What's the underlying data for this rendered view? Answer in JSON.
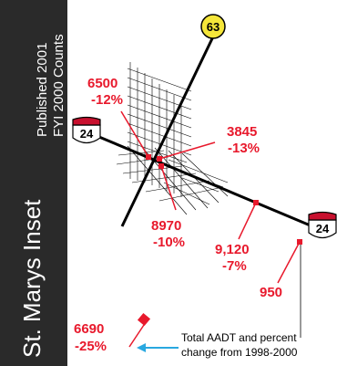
{
  "title": "St. Marys Inset",
  "subtitle_1": "Published 2001",
  "subtitle_2": "FYI 2000 Counts",
  "routes": {
    "state": "63",
    "interstate_west": "24",
    "interstate_east": "24"
  },
  "counts": [
    {
      "value": "6500",
      "change": "-12%"
    },
    {
      "value": "3845",
      "change": "-13%"
    },
    {
      "value": "8970",
      "change": "-10%"
    },
    {
      "value": "9,120",
      "change": "-7%"
    },
    {
      "value": "950",
      "change": ""
    },
    {
      "value": "6690",
      "change": "-25%"
    }
  ],
  "legend": {
    "line_1": "Total AADT and percent",
    "line_2": "change from 1998-2000"
  },
  "colors": {
    "sidebar": "#2a2a2a",
    "count_text": "#e8192c",
    "shield_state": "#f5e63a",
    "shield_interstate": "#c8102e",
    "legend_arrow": "#29a8e0",
    "road": "#000000"
  }
}
